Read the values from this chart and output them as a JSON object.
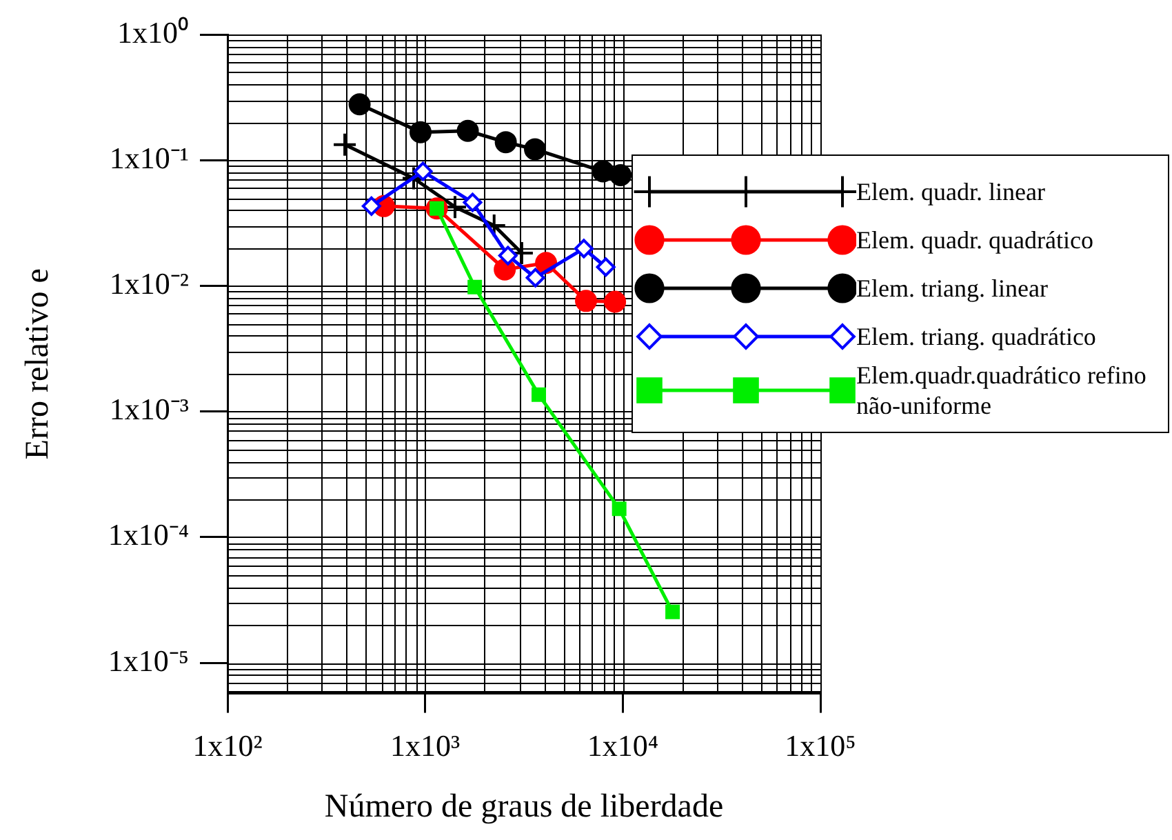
{
  "chart_data": {
    "type": "line",
    "xlabel": "Número de graus de liberdade",
    "ylabel": "Erro relativo e",
    "log": "xy",
    "grid": true,
    "legend": "right",
    "xlim": [
      100,
      100000
    ],
    "ylim": [
      5.7e-06,
      1
    ],
    "xticks": [
      {
        "value": 100,
        "label": "1x10²"
      },
      {
        "value": 1000,
        "label": "1x10³"
      },
      {
        "value": 10000,
        "label": "1x10⁴"
      },
      {
        "value": 100000,
        "label": "1x10⁵"
      }
    ],
    "yticks": [
      {
        "value": 1,
        "label": "1x10⁰"
      },
      {
        "value": 0.1,
        "label": "1x10⁻¹"
      },
      {
        "value": 0.01,
        "label": "1x10⁻²"
      },
      {
        "value": 0.001,
        "label": "1x10⁻³"
      },
      {
        "value": 0.0001,
        "label": "1x10⁻⁴"
      },
      {
        "value": 1e-05,
        "label": "1x10⁻⁵"
      }
    ],
    "series": [
      {
        "name": "Elem. quadr. linear",
        "color": "#000000",
        "marker": "cross",
        "x": [
          392,
          875,
          1416,
          2234,
          3084
        ],
        "values": [
          0.133,
          0.0717,
          0.0424,
          0.0302,
          0.0182
        ]
      },
      {
        "name": "Elem. quadr. quadrático",
        "color": "#ff0000",
        "marker": "circle",
        "x": [
          618,
          1146,
          2529,
          4093,
          6518,
          9140
        ],
        "values": [
          0.0431,
          0.0413,
          0.0135,
          0.0152,
          0.00758,
          0.00747
        ]
      },
      {
        "name": "Elem. triang. linear",
        "color": "#000000",
        "marker": "circle",
        "x": [
          466,
          948,
          1644,
          2559,
          3597,
          7943,
          9750
        ],
        "values": [
          0.278,
          0.167,
          0.171,
          0.139,
          0.122,
          0.0814,
          0.076
        ]
      },
      {
        "name": "Elem. triang. quadrático",
        "color": "#0000ff",
        "marker": "diamond",
        "x": [
          535,
          975,
          1738,
          2624,
          3614,
          6353,
          8204
        ],
        "values": [
          0.0431,
          0.0814,
          0.0461,
          0.0174,
          0.0116,
          0.0198,
          0.0141
        ]
      },
      {
        "name": "Elem.quadr.quadrático refino não-uniforme",
        "color": "#00ee00",
        "marker": "square",
        "x": [
          1146,
          1783,
          3758,
          9594,
          17865
        ],
        "values": [
          0.0413,
          0.00977,
          0.00136,
          0.000168,
          2.54e-05
        ]
      }
    ]
  }
}
